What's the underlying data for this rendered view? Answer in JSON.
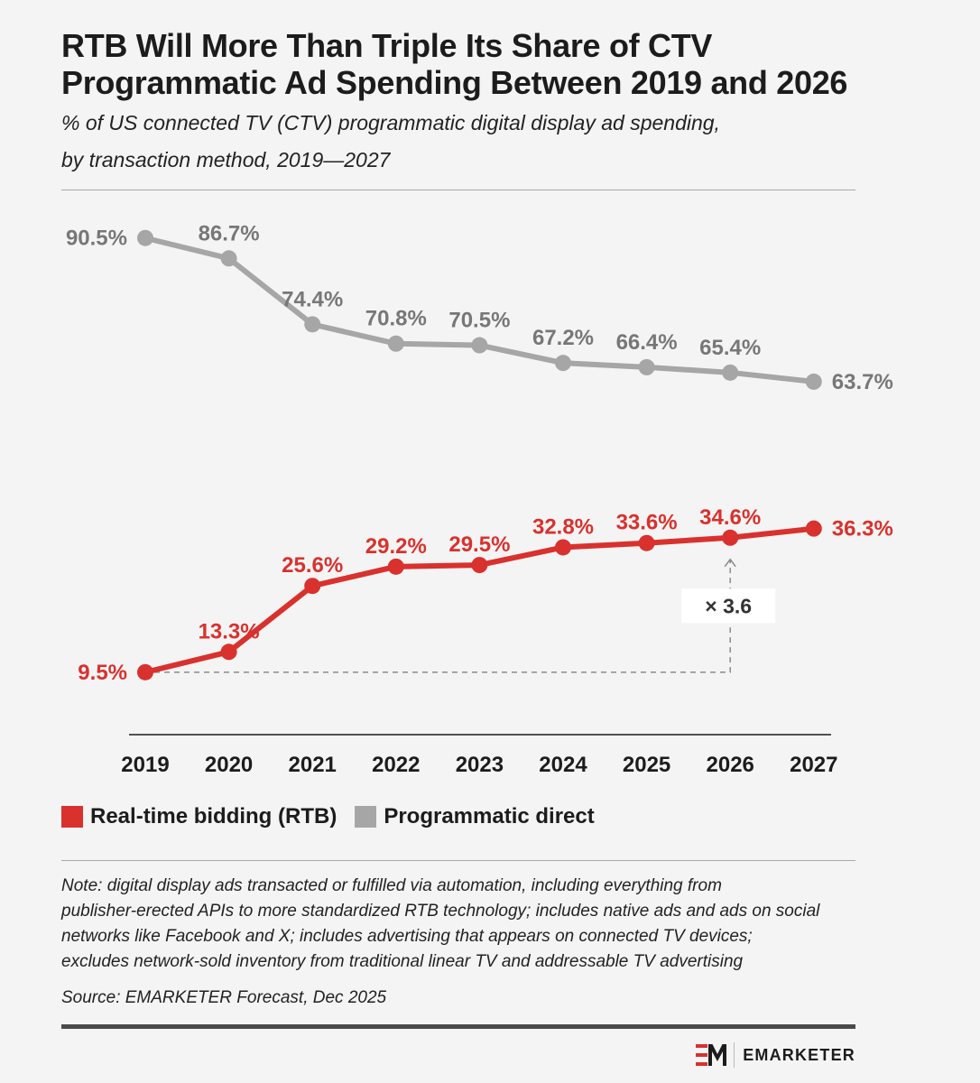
{
  "header": {
    "title_lines": [
      "RTB Will More Than Triple Its Share of CTV",
      "Programmatic Ad Spending Between 2019 and 2026"
    ],
    "subtitle_lines": [
      "% of US connected TV (CTV) programmatic digital display ad spending,",
      "by transaction method, 2019—2027"
    ]
  },
  "chart_data": {
    "type": "line",
    "x": [
      "2019",
      "2020",
      "2021",
      "2022",
      "2023",
      "2024",
      "2025",
      "2026",
      "2027"
    ],
    "series": [
      {
        "name": "Programmatic direct",
        "color": "#a6a6a6",
        "label_color": "#777777",
        "values": [
          90.5,
          86.7,
          74.4,
          70.8,
          70.5,
          67.2,
          66.4,
          65.4,
          63.7
        ],
        "labels": [
          "90.5%",
          "86.7%",
          "74.4%",
          "70.8%",
          "70.5%",
          "67.2%",
          "66.4%",
          "65.4%",
          "63.7%"
        ]
      },
      {
        "name": "Real-time bidding (RTB)",
        "color": "#d9312d",
        "label_color": "#d9312d",
        "values": [
          9.5,
          13.3,
          25.6,
          29.2,
          29.5,
          32.8,
          33.6,
          34.6,
          36.3
        ],
        "labels": [
          "9.5%",
          "13.3%",
          "25.6%",
          "29.2%",
          "29.5%",
          "32.8%",
          "33.6%",
          "34.6%",
          "36.3%"
        ]
      }
    ],
    "annotation": {
      "text": "× 3.6",
      "from_x": "2019",
      "to_x": "2026",
      "series": "Real-time bidding (RTB)"
    },
    "grid": false,
    "legend_position": "bottom-left"
  },
  "legend": {
    "items": [
      {
        "label": "Real-time bidding (RTB)",
        "color": "#d9312d"
      },
      {
        "label": "Programmatic direct",
        "color": "#a6a6a6"
      }
    ]
  },
  "footer": {
    "note_lines": [
      "Note: digital display ads transacted or fulfilled via automation, including everything from",
      "publisher-erected APIs to more standardized RTB technology; includes native ads and ads on social",
      "networks like Facebook and X; includes advertising that appears on connected TV devices;",
      "excludes network-sold inventory from traditional linear TV and addressable TV advertising"
    ],
    "source": "Source: EMARKETER Forecast, Dec 2025",
    "brand": "EMARKETER",
    "brand_color": "#d9312d"
  }
}
